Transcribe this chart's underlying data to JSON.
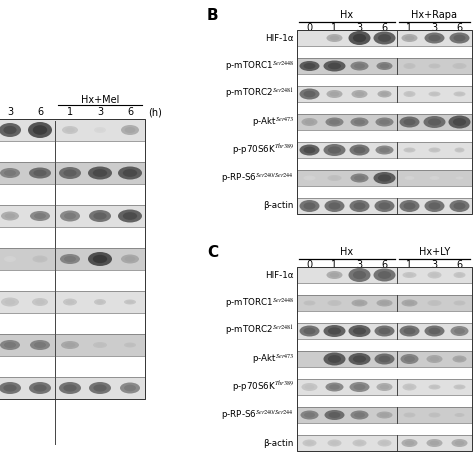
{
  "bg_color": "#ffffff",
  "panel_B": {
    "label": "B",
    "group1_label": "Hx",
    "group2_label": "Hx+Rapa",
    "col_labels": [
      "0",
      "1",
      "3",
      "6",
      "1",
      "3",
      "6"
    ],
    "row_labels": [
      "HIF-1α",
      "p-mTORC1$^{Ser2448}$",
      "p-mTORC2$^{Ser2481}$",
      "p-Akt$^{Ser473}$",
      "p-p70S6K$^{Thr389}$",
      "p-RP-S6$^{Ser240/Ser244}$",
      "β-actin"
    ]
  },
  "panel_C": {
    "label": "C",
    "group1_label": "Hx",
    "group2_label": "Hx+LY",
    "col_labels": [
      "0",
      "1",
      "3",
      "6",
      "1",
      "3",
      "6"
    ],
    "row_labels": [
      "HIF-1α",
      "p-mTORC1$^{Ser2448}$",
      "p-mTORC2$^{Ser2481}$",
      "p-Akt$^{Ser473}$",
      "p-p70S6K$^{Thr389}$",
      "p-RP-S6$^{Ser240/Ser244}$",
      "β-actin"
    ]
  }
}
